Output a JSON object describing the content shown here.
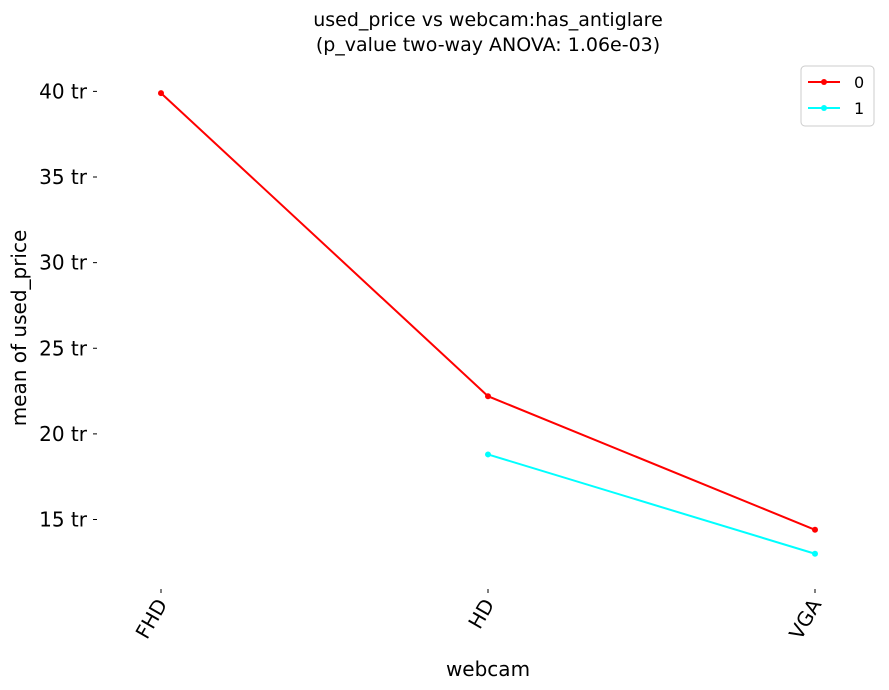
{
  "chart_data": {
    "type": "line",
    "title": "used_price vs webcam:has_antiglare",
    "subtitle": "(p_value two-way ANOVA: 1.06e-03)",
    "xlabel": "webcam",
    "ylabel": "mean of used_price",
    "categories": [
      "FHD",
      "HD",
      "VGA"
    ],
    "y_ticks": [
      {
        "value": 15,
        "label": "15 tr"
      },
      {
        "value": 20,
        "label": "20 tr"
      },
      {
        "value": 25,
        "label": "25 tr"
      },
      {
        "value": 30,
        "label": "30 tr"
      },
      {
        "value": 35,
        "label": "35 tr"
      },
      {
        "value": 40,
        "label": "40 tr"
      }
    ],
    "ylim": [
      10.3,
      42.3
    ],
    "legend_placement": "top-right",
    "grid": false,
    "series": [
      {
        "name": "0",
        "color": "#ff0000",
        "values": [
          39.9,
          22.2,
          14.4
        ]
      },
      {
        "name": "1",
        "color": "#00ffff",
        "values": [
          null,
          18.8,
          13.0
        ]
      }
    ]
  }
}
